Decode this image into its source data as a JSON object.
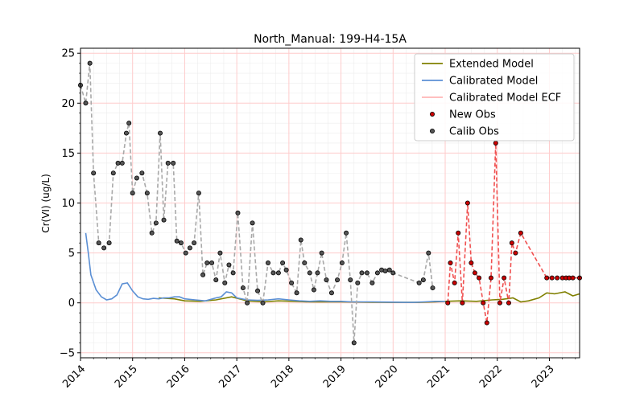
{
  "chart_data": {
    "type": "line",
    "title": "North_Manual: 199-H4-15A",
    "xlabel": "",
    "ylabel": "Cr(VI) (ug/L)",
    "xlim": [
      2014.0,
      2023.58
    ],
    "ylim": [
      -5.5,
      25.5
    ],
    "x_ticks": [
      2014,
      2015,
      2016,
      2017,
      2018,
      2019,
      2020,
      2021,
      2022,
      2023
    ],
    "x_tick_labels": [
      "2014",
      "2015",
      "2016",
      "2017",
      "2018",
      "2019",
      "2020",
      "2021",
      "2022",
      "2023"
    ],
    "y_ticks": [
      -5,
      0,
      5,
      10,
      15,
      20,
      25
    ],
    "y_tick_labels": [
      "−5",
      "0",
      "5",
      "10",
      "15",
      "20",
      "25"
    ],
    "grid": true,
    "legend_position": "top-right",
    "legend": [
      {
        "label": "Extended Model",
        "kind": "line",
        "color": "#808000"
      },
      {
        "label": "Calibrated Model",
        "kind": "line",
        "color": "#5b8fd4"
      },
      {
        "label": "Calibrated Model ECF",
        "kind": "line",
        "color": "#ffb6b6"
      },
      {
        "label": "New Obs",
        "kind": "marker",
        "color": "#cc0000"
      },
      {
        "label": "Calib Obs",
        "kind": "marker",
        "color": "#555555"
      }
    ],
    "series": [
      {
        "name": "Extended Model",
        "color": "#808000",
        "x": [
          2014.0,
          2014.3,
          2014.6,
          2014.9,
          2015.2,
          2015.5,
          2015.8,
          2016.0,
          2016.3,
          2016.6,
          2016.9,
          2017.2,
          2017.5,
          2017.8,
          2018.1,
          2018.4,
          2018.7,
          2019.0,
          2019.3,
          2019.6,
          2019.9,
          2020.2,
          2020.5,
          2020.8,
          2021.0,
          2021.3,
          2021.6,
          2021.9,
          2022.1,
          2022.3,
          2022.45,
          2022.6,
          2022.8,
          2022.95,
          2023.1,
          2023.3,
          2023.45,
          2023.58
        ],
        "y": [
          null,
          null,
          null,
          null,
          null,
          0.5,
          0.4,
          0.2,
          0.15,
          0.3,
          0.6,
          0.2,
          0.1,
          0.2,
          0.15,
          0.1,
          0.1,
          0.1,
          0.08,
          0.06,
          0.05,
          0.05,
          0.05,
          0.1,
          0.15,
          0.2,
          0.15,
          0.3,
          0.35,
          0.5,
          0.1,
          0.2,
          0.5,
          1.0,
          0.9,
          1.1,
          0.7,
          0.9
        ]
      },
      {
        "name": "Calibrated Model",
        "color": "#5b8fd4",
        "x": [
          2014.1,
          2014.15,
          2014.2,
          2014.3,
          2014.4,
          2014.5,
          2014.6,
          2014.7,
          2014.8,
          2014.9,
          2015.0,
          2015.1,
          2015.2,
          2015.3,
          2015.4,
          2015.5,
          2015.6,
          2015.7,
          2015.8,
          2015.9,
          2016.0,
          2016.2,
          2016.4,
          2016.6,
          2016.7,
          2016.8,
          2016.9,
          2017.0,
          2017.2,
          2017.4,
          2017.6,
          2017.8,
          2018.0,
          2018.2,
          2018.4,
          2018.6,
          2018.8,
          2019.0,
          2019.2,
          2019.4,
          2019.6,
          2019.8,
          2020.0,
          2020.2,
          2020.4,
          2020.6,
          2020.8,
          2021.0
        ],
        "y": [
          7.0,
          5.0,
          2.8,
          1.3,
          0.6,
          0.3,
          0.4,
          0.8,
          1.9,
          2.0,
          1.2,
          0.6,
          0.4,
          0.35,
          0.45,
          0.4,
          0.5,
          0.5,
          0.6,
          0.6,
          0.4,
          0.3,
          0.2,
          0.5,
          0.6,
          1.1,
          1.0,
          0.5,
          0.3,
          0.25,
          0.3,
          0.4,
          0.3,
          0.2,
          0.15,
          0.2,
          0.15,
          0.15,
          0.1,
          0.1,
          0.1,
          0.08,
          0.07,
          0.05,
          0.05,
          0.1,
          0.15,
          0.15
        ]
      },
      {
        "name": "Calib Obs",
        "color": "#555555",
        "line_color": "#a9a9a9",
        "x": [
          2014.0,
          2014.1,
          2014.18,
          2014.25,
          2014.35,
          2014.45,
          2014.55,
          2014.63,
          2014.72,
          2014.8,
          2014.88,
          2014.93,
          2015.0,
          2015.08,
          2015.18,
          2015.28,
          2015.37,
          2015.45,
          2015.53,
          2015.6,
          2015.68,
          2015.78,
          2015.85,
          2015.93,
          2016.02,
          2016.1,
          2016.18,
          2016.27,
          2016.35,
          2016.43,
          2016.52,
          2016.6,
          2016.68,
          2016.77,
          2016.85,
          2016.93,
          2017.02,
          2017.12,
          2017.2,
          2017.3,
          2017.4,
          2017.5,
          2017.6,
          2017.7,
          2017.8,
          2017.88,
          2017.95,
          2018.05,
          2018.15,
          2018.23,
          2018.3,
          2018.4,
          2018.48,
          2018.55,
          2018.63,
          2018.72,
          2018.82,
          2018.93,
          2019.02,
          2019.1,
          2019.18,
          2019.25,
          2019.32,
          2019.4,
          2019.5,
          2019.6,
          2019.7,
          2019.78,
          2019.85,
          2019.93,
          2020.0,
          2020.5,
          2020.58,
          2020.68,
          2020.76
        ],
        "y": [
          21.8,
          20.0,
          24.0,
          13.0,
          6.0,
          5.5,
          6.0,
          13.0,
          14.0,
          14.0,
          17.0,
          18.0,
          11.0,
          12.5,
          13.0,
          11.0,
          7.0,
          8.0,
          17.0,
          8.3,
          14.0,
          14.0,
          6.2,
          6.0,
          5.0,
          5.5,
          6.0,
          11.0,
          2.8,
          4.0,
          4.0,
          2.3,
          5.0,
          2.0,
          3.8,
          3.0,
          9.0,
          1.5,
          0.0,
          8.0,
          1.2,
          0.0,
          4.0,
          3.0,
          3.0,
          4.0,
          3.3,
          2.0,
          1.0,
          6.3,
          4.0,
          3.0,
          1.3,
          3.0,
          5.0,
          2.3,
          1.0,
          2.3,
          4.0,
          7.0,
          2.3,
          -4.0,
          2.0,
          3.0,
          3.0,
          2.0,
          3.0,
          3.3,
          3.2,
          3.3,
          3.0,
          2.0,
          2.3,
          5.0,
          1.5
        ]
      },
      {
        "name": "New Obs",
        "color": "#cc0000",
        "line_color": "#f05050",
        "x": [
          2021.05,
          2021.1,
          2021.18,
          2021.25,
          2021.33,
          2021.43,
          2021.5,
          2021.57,
          2021.65,
          2021.73,
          2021.8,
          2021.88,
          2021.97,
          2022.05,
          2022.13,
          2022.22,
          2022.28,
          2022.35,
          2022.45,
          2022.95,
          2023.05,
          2023.15,
          2023.25,
          2023.32,
          2023.38,
          2023.45,
          2023.58
        ],
        "y": [
          0.0,
          4.0,
          2.0,
          7.0,
          0.0,
          10.0,
          4.0,
          3.0,
          2.5,
          0.0,
          -2.0,
          2.5,
          16.0,
          0.0,
          2.5,
          0.0,
          6.0,
          5.0,
          7.0,
          2.5,
          2.5,
          2.5,
          2.5,
          2.5,
          2.5,
          2.5,
          2.5
        ]
      }
    ]
  }
}
